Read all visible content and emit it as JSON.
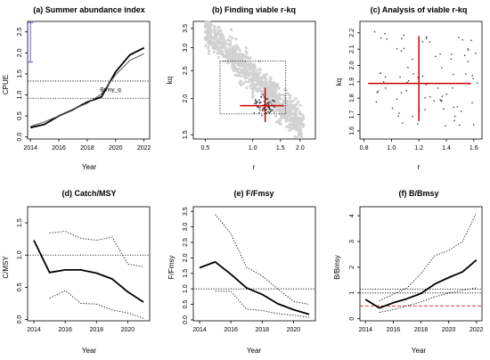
{
  "figure": {
    "panels": [
      {
        "id": "a",
        "title": "(a) Summer abundance index",
        "xlabel": "Year",
        "ylabel": "CPUE",
        "annotation": "Bmsy_q"
      },
      {
        "id": "b",
        "title": "(b) Finding viable r-kq",
        "xlabel": "r",
        "ylabel": "kq"
      },
      {
        "id": "c",
        "title": "(c) Analysis of viable r-kq",
        "xlabel": "r",
        "ylabel": "kq"
      },
      {
        "id": "d",
        "title": "(d) Catch/MSY",
        "xlabel": "Year",
        "ylabel": "C/MSY"
      },
      {
        "id": "e",
        "title": "(e) F/Fmsy",
        "xlabel": "Year",
        "ylabel": "F/Fmsy"
      },
      {
        "id": "f",
        "title": "(f) B/Bmsy",
        "xlabel": "Year",
        "ylabel": "B/Bmsy"
      }
    ]
  },
  "chart_data": [
    {
      "type": "line",
      "title": "(a) Summer abundance index",
      "xlabel": "Year",
      "ylabel": "CPUE",
      "xlim": [
        2013.8,
        2022.4
      ],
      "ylim": [
        -0.05,
        2.75
      ],
      "xticks": [
        2014,
        2016,
        2018,
        2020,
        2022
      ],
      "yticks": [
        0.0,
        0.5,
        1.0,
        1.5,
        2.0,
        2.5
      ],
      "ytick_labels": [
        "0.0",
        "0.5",
        "1.0",
        "1.5",
        "2.0",
        "2.5"
      ],
      "x": [
        2014,
        2015,
        2016,
        2017,
        2018,
        2019,
        2020,
        2021,
        2022
      ],
      "series": [
        {
          "values": [
            0.22,
            0.3,
            0.5,
            0.65,
            0.83,
            0.95,
            1.55,
            1.95,
            2.12
          ],
          "color": "#000000",
          "width": 1.8
        },
        {
          "values": [
            0.25,
            0.36,
            0.5,
            0.66,
            0.8,
            1.02,
            1.48,
            1.82,
            1.98
          ],
          "color": "#555555",
          "width": 1
        }
      ],
      "hlines": [
        {
          "y": 1.33,
          "dash": true
        },
        {
          "y": 0.92,
          "dash": true
        }
      ],
      "error_bar": {
        "x": 2014,
        "ymin": 1.78,
        "ymax": 2.72,
        "color": "#6b5fcf"
      }
    },
    {
      "type": "scatter",
      "title": "(b) Finding viable r-kq",
      "xlabel": "r",
      "ylabel": "kq",
      "xscale": "log",
      "yscale": "log",
      "xlim": [
        0.42,
        2.5
      ],
      "ylim": [
        1.45,
        3.7
      ],
      "xticks": [
        0.5,
        1.0,
        1.5,
        2.0
      ],
      "xtick_labels": [
        "0.5",
        "1.0",
        "1.5",
        "2.0"
      ],
      "yticks": [
        1.5,
        2.0,
        2.5,
        3.0,
        3.5
      ],
      "ytick_labels": [
        "1.5",
        "2.0",
        "2.5",
        "3.0",
        "3.5"
      ],
      "prior_box": {
        "r": [
          0.62,
          1.62
        ],
        "kq": [
          1.77,
          2.7
        ]
      },
      "point_cloud": "grey cloud of explored r-kq pairs",
      "best_estimate": {
        "r": 1.2,
        "kq": 1.89,
        "r_range": [
          0.83,
          1.58
        ],
        "kq_range": [
          1.66,
          2.18
        ],
        "color": "#cc0000"
      }
    },
    {
      "type": "scatter",
      "title": "(c) Analysis of viable r-kq",
      "xlabel": "r",
      "ylabel": "kq",
      "xlim": [
        0.77,
        1.66
      ],
      "ylim": [
        1.55,
        2.27
      ],
      "xticks": [
        0.8,
        1.0,
        1.2,
        1.4,
        1.6
      ],
      "xtick_labels": [
        "0.8",
        "1.0",
        "1.2",
        "1.4",
        "1.6"
      ],
      "yticks": [
        1.6,
        1.7,
        1.8,
        1.9,
        2.0,
        2.1,
        2.2
      ],
      "ytick_labels": [
        "1.6",
        "1.7",
        "1.8",
        "1.9",
        "2.0",
        "2.1",
        "2.2"
      ],
      "best_estimate": {
        "r": 1.2,
        "kq": 1.89,
        "r_range": [
          0.83,
          1.58
        ],
        "kq_range": [
          1.66,
          2.18
        ],
        "color": "#cc0000"
      }
    },
    {
      "type": "line",
      "title": "(d) Catch/MSY",
      "xlabel": "Year",
      "ylabel": "C/MSY",
      "xlim": [
        2013.6,
        2021.4
      ],
      "ylim": [
        -0.02,
        1.75
      ],
      "xticks": [
        2014,
        2016,
        2018,
        2020
      ],
      "yticks": [
        0.0,
        0.5,
        1.0,
        1.5
      ],
      "ytick_labels": [
        "0.0",
        "0.5",
        "1.0",
        "1.5"
      ],
      "x": [
        2014,
        2015,
        2016,
        2017,
        2018,
        2019,
        2020,
        2021
      ],
      "series": [
        {
          "x": [
            2014,
            2015,
            2016,
            2017,
            2018,
            2019,
            2020,
            2021
          ],
          "values": [
            1.23,
            0.73,
            0.77,
            0.77,
            0.72,
            0.63,
            0.43,
            0.27
          ],
          "color": "#000000",
          "width": 1.8
        },
        {
          "x": [
            2015,
            2016,
            2017,
            2018,
            2019,
            2020,
            2021
          ],
          "values": [
            1.34,
            1.37,
            1.26,
            1.23,
            1.28,
            0.86,
            0.82
          ],
          "dotted": true
        },
        {
          "x": [
            2015,
            2016,
            2017,
            2018,
            2019,
            2020,
            2021
          ],
          "values": [
            0.33,
            0.45,
            0.25,
            0.24,
            0.15,
            0.1,
            0.02
          ],
          "dotted": true
        }
      ],
      "hlines": [
        {
          "y": 1.0,
          "dash": true
        }
      ]
    },
    {
      "type": "line",
      "title": "(e) F/Fmsy",
      "xlabel": "Year",
      "ylabel": "F/Fmsy",
      "xlim": [
        2013.6,
        2021.4
      ],
      "ylim": [
        -0.03,
        3.65
      ],
      "xticks": [
        2014,
        2016,
        2018,
        2020
      ],
      "yticks": [
        0.0,
        0.5,
        1.0,
        1.5,
        2.0,
        2.5,
        3.0,
        3.5
      ],
      "ytick_labels": [
        "0.0",
        "0.5",
        "1.0",
        "1.5",
        "2.0",
        "2.5",
        "3.0",
        "3.5"
      ],
      "x": [
        2014,
        2015,
        2016,
        2017,
        2018,
        2019,
        2020,
        2021
      ],
      "series": [
        {
          "x": [
            2014,
            2015,
            2016,
            2017,
            2018,
            2019,
            2020,
            2021
          ],
          "values": [
            1.68,
            1.87,
            1.47,
            1.03,
            0.82,
            0.52,
            0.33,
            0.18
          ],
          "color": "#000000",
          "width": 1.8
        },
        {
          "x": [
            2015,
            2016,
            2017,
            2018,
            2019,
            2020,
            2021
          ],
          "values": [
            3.4,
            2.78,
            1.7,
            1.42,
            1.0,
            0.6,
            0.5
          ],
          "dotted": true
        },
        {
          "x": [
            2015,
            2016,
            2017,
            2018,
            2019,
            2020,
            2021
          ],
          "values": [
            0.93,
            0.92,
            0.35,
            0.3,
            0.2,
            0.15,
            0.08
          ],
          "dotted": true
        }
      ],
      "hlines": [
        {
          "y": 1.0,
          "dash": true
        }
      ]
    },
    {
      "type": "line",
      "title": "(f) B/Bmsy",
      "xlabel": "Year",
      "ylabel": "B/Bmsy",
      "xlim": [
        2013.6,
        2022.4
      ],
      "ylim": [
        -0.08,
        4.35
      ],
      "xticks": [
        2014,
        2016,
        2018,
        2020,
        2022
      ],
      "yticks": [
        0,
        1,
        2,
        3,
        4
      ],
      "ytick_labels": [
        "0",
        "1",
        "2",
        "3",
        "4"
      ],
      "x": [
        2014,
        2015,
        2016,
        2017,
        2018,
        2019,
        2020,
        2021,
        2022
      ],
      "series": [
        {
          "x": [
            2014,
            2015,
            2016,
            2017,
            2018,
            2019,
            2020,
            2021,
            2022
          ],
          "values": [
            0.75,
            0.42,
            0.62,
            0.78,
            0.98,
            1.35,
            1.6,
            1.82,
            2.28
          ],
          "color": "#000000",
          "width": 1.8
        },
        {
          "x": [
            2015,
            2016,
            2017,
            2018,
            2019,
            2020,
            2021,
            2022
          ],
          "values": [
            0.7,
            0.95,
            1.2,
            1.75,
            2.45,
            2.65,
            3.0,
            4.12
          ],
          "dotted": true
        },
        {
          "x": [
            2015,
            2016,
            2017,
            2018,
            2019,
            2020,
            2021,
            2022
          ],
          "values": [
            0.25,
            0.35,
            0.5,
            0.65,
            0.85,
            1.0,
            1.1,
            1.2
          ],
          "dotted": true
        }
      ],
      "hlines": [
        {
          "y": 1.15,
          "dash": true
        },
        {
          "y": 1.0,
          "dash": true
        },
        {
          "y": 0.5,
          "dash": true,
          "color": "#cc0000"
        }
      ]
    }
  ]
}
